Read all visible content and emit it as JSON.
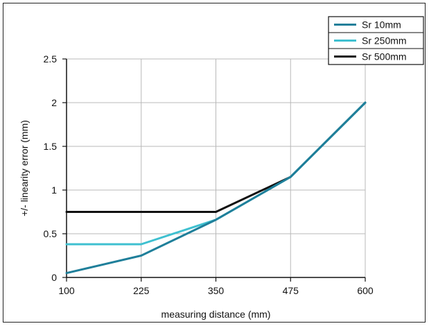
{
  "chart_data": {
    "type": "line",
    "title": "",
    "xlabel": "measuring distance (mm)",
    "ylabel": "+/- linearity error (mm)",
    "x": [
      100,
      225,
      350,
      475,
      600
    ],
    "xlim": [
      100,
      600
    ],
    "ylim": [
      0,
      2.5
    ],
    "x_ticks": [
      "100",
      "225",
      "350",
      "475",
      "600"
    ],
    "y_ticks": [
      "0",
      "0.5",
      "1",
      "1.5",
      "2",
      "2.5"
    ],
    "grid": true,
    "legend_position": "top-right",
    "series": [
      {
        "name": "Sr 500mm",
        "color": "#111111",
        "values": [
          0.75,
          0.75,
          0.75,
          1.15,
          2.0
        ]
      },
      {
        "name": "Sr 250mm",
        "color": "#3fc0d0",
        "values": [
          0.38,
          0.38,
          0.66,
          1.15,
          2.0
        ]
      },
      {
        "name": "Sr 10mm",
        "color": "#1f7f9a",
        "values": [
          0.05,
          0.25,
          0.66,
          1.15,
          2.0
        ]
      }
    ],
    "legend": [
      "Sr 10mm",
      "Sr 250mm",
      "Sr 500mm"
    ]
  }
}
